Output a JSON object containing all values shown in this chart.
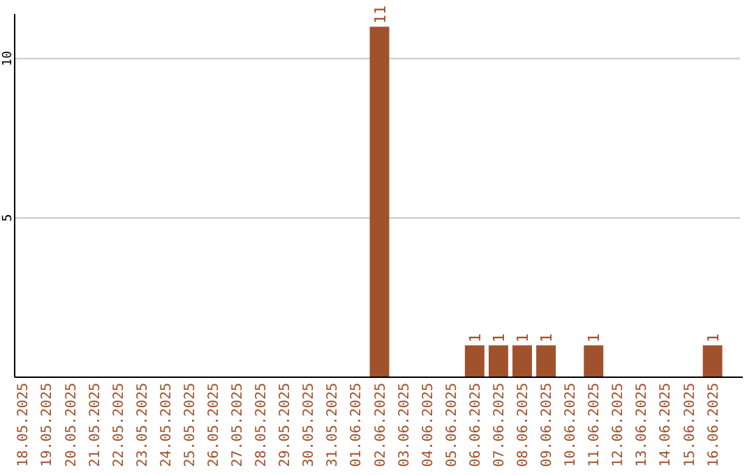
{
  "chart_data": {
    "type": "bar",
    "categories": [
      "18.05.2025",
      "19.05.2025",
      "20.05.2025",
      "21.05.2025",
      "22.05.2025",
      "23.05.2025",
      "24.05.2025",
      "25.05.2025",
      "26.05.2025",
      "27.05.2025",
      "28.05.2025",
      "29.05.2025",
      "30.05.2025",
      "31.05.2025",
      "01.06.2025",
      "02.06.2025",
      "03.06.2025",
      "04.06.2025",
      "05.06.2025",
      "06.06.2025",
      "07.06.2025",
      "08.06.2025",
      "09.06.2025",
      "10.06.2025",
      "11.06.2025",
      "12.06.2025",
      "13.06.2025",
      "14.06.2025",
      "15.06.2025",
      "16.06.2025"
    ],
    "values": [
      0,
      0,
      0,
      0,
      0,
      0,
      0,
      0,
      0,
      0,
      0,
      0,
      0,
      0,
      0,
      11,
      0,
      0,
      0,
      1,
      1,
      1,
      1,
      0,
      1,
      0,
      0,
      0,
      0,
      1
    ],
    "value_labels": [
      null,
      null,
      null,
      null,
      null,
      null,
      null,
      null,
      null,
      null,
      null,
      null,
      null,
      null,
      null,
      "11",
      null,
      null,
      null,
      "1",
      "1",
      "1",
      "1",
      null,
      "1",
      null,
      null,
      null,
      null,
      "1"
    ],
    "color": "#a0522d",
    "ylim": [
      0,
      11.4
    ],
    "yticks": [
      5,
      10
    ],
    "grid": "y"
  }
}
